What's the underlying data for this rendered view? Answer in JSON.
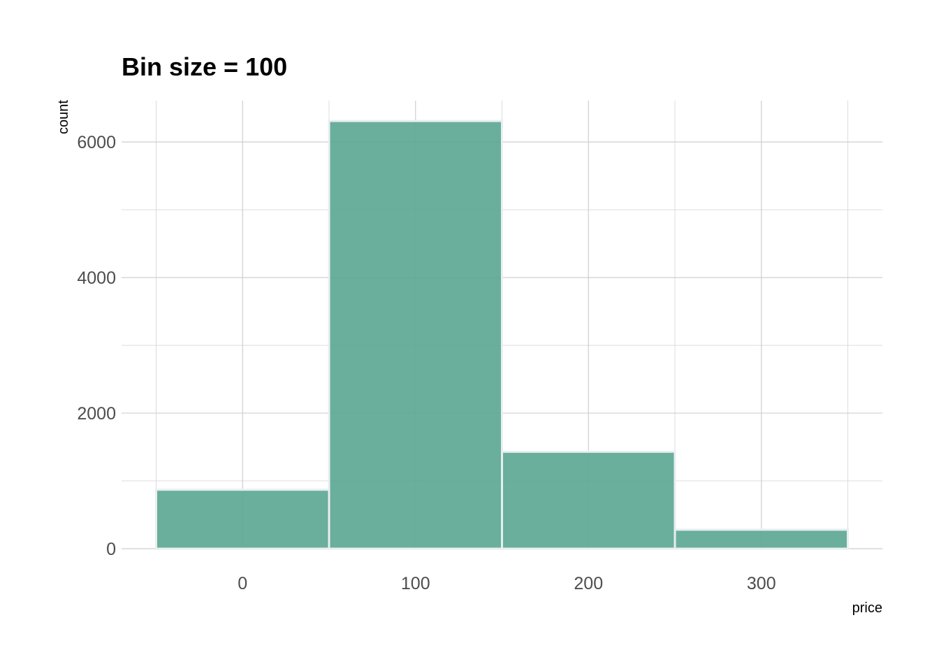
{
  "chart_data": {
    "type": "bar",
    "title": "Bin size = 100",
    "xlabel": "price",
    "ylabel": "count",
    "bins": [
      {
        "start": -50,
        "end": 50,
        "count": 870
      },
      {
        "start": 50,
        "end": 150,
        "count": 6310
      },
      {
        "start": 150,
        "end": 250,
        "count": 1430
      },
      {
        "start": 250,
        "end": 350,
        "count": 280
      }
    ],
    "xlim": [
      -70,
      370
    ],
    "ylim": [
      0,
      6610
    ],
    "x_ticks": [
      0,
      100,
      200,
      300
    ],
    "x_tick_labels": [
      "0",
      "100",
      "200",
      "300"
    ],
    "y_ticks": [
      0,
      2000,
      4000,
      6000
    ],
    "y_tick_labels": [
      "0",
      "2000",
      "4000",
      "6000"
    ],
    "grid": true,
    "bar_color": "#5aa690"
  }
}
